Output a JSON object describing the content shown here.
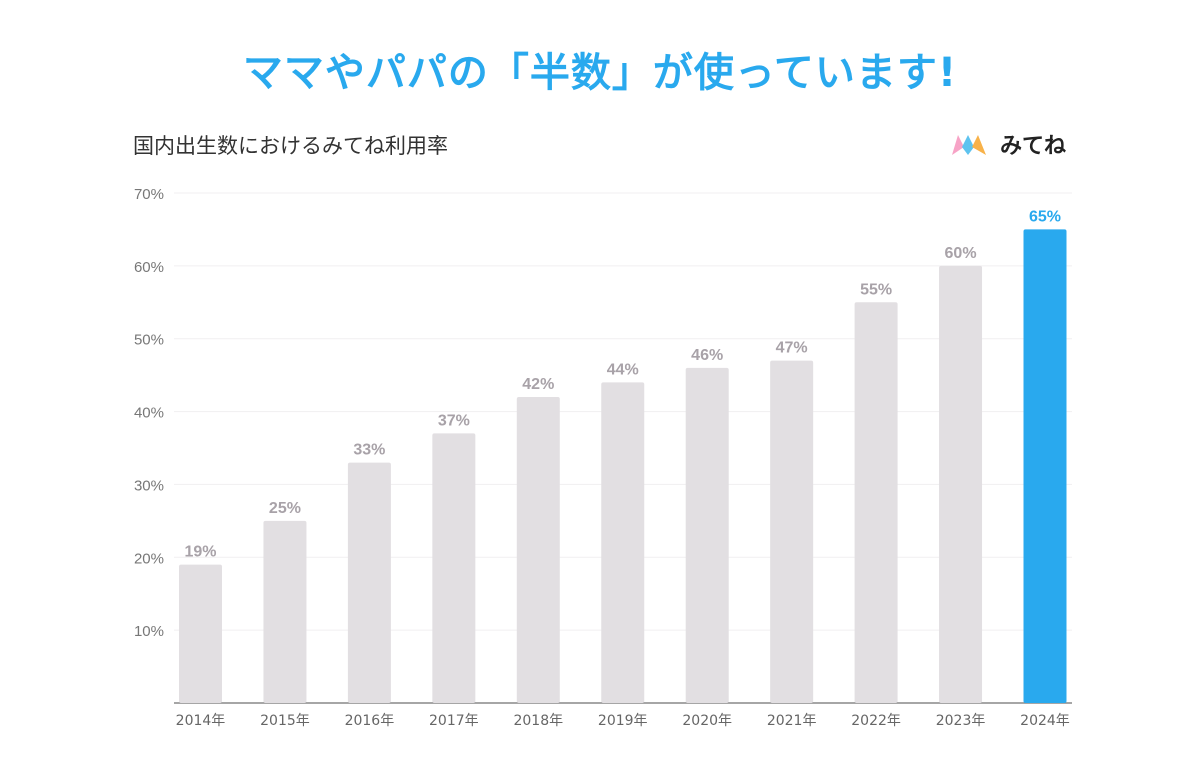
{
  "headline": {
    "text": "ママやパパの「半数」が使っています!",
    "color": "#29a9ee"
  },
  "brand": {
    "name": "みてね",
    "icon": "mitene-logo-icon",
    "logo_colors": [
      "#f7a3c6",
      "#5ec3ef",
      "#f8b24a"
    ]
  },
  "chart_data": {
    "type": "bar",
    "title": "国内出生数におけるみてね利用率",
    "xlabel": "",
    "ylabel": "",
    "categories": [
      "2014年",
      "2015年",
      "2016年",
      "2017年",
      "2018年",
      "2019年",
      "2020年",
      "2021年",
      "2022年",
      "2023年",
      "2024年"
    ],
    "values": [
      19,
      25,
      33,
      37,
      42,
      44,
      46,
      47,
      55,
      60,
      65
    ],
    "data_labels": [
      "19%",
      "25%",
      "33%",
      "37%",
      "42%",
      "44%",
      "46%",
      "47%",
      "55%",
      "60%",
      "65%"
    ],
    "ylim": [
      0,
      70
    ],
    "yticks": [
      10,
      20,
      30,
      40,
      50,
      60,
      70
    ],
    "ytick_labels": [
      "10%",
      "20%",
      "30%",
      "40%",
      "50%",
      "60%",
      "70%"
    ],
    "grid": true,
    "highlight_index": 10,
    "colors": {
      "bar": "#e2dfe2",
      "highlight": "#29a9ee",
      "label": "#a8a2a8",
      "highlight_label": "#29a9ee"
    }
  }
}
